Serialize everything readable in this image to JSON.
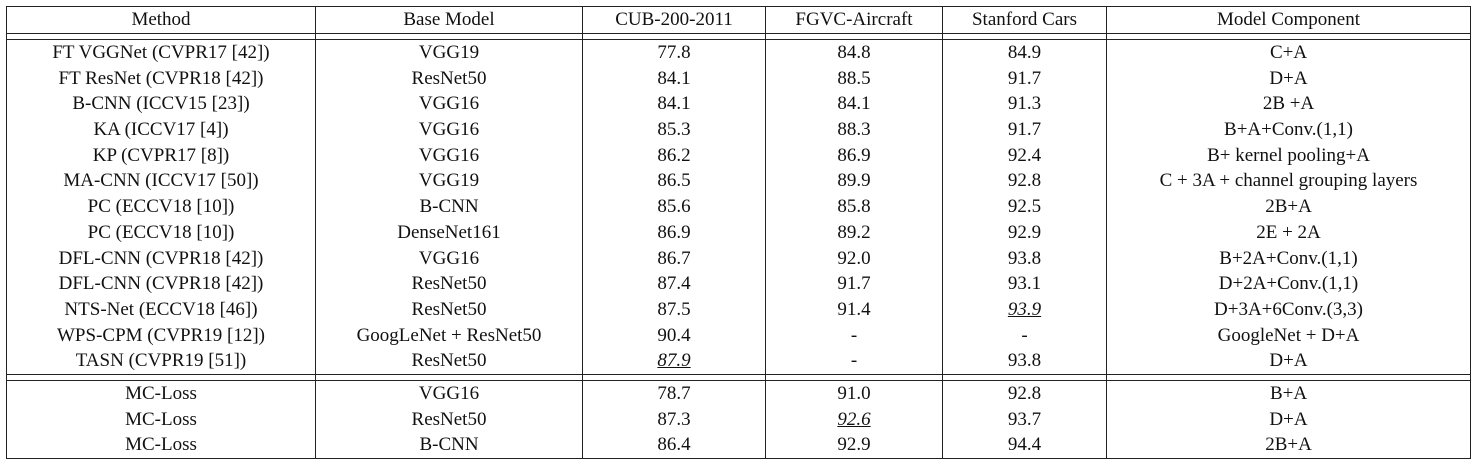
{
  "headers": [
    "Method",
    "Base Model",
    "CUB-200-2011",
    "FGVC-Aircraft",
    "Stanford Cars",
    "Model Component"
  ],
  "rows": [
    [
      "FT VGGNet (CVPR17 [42])",
      "VGG19",
      "77.8",
      "84.8",
      "84.9",
      "C+A"
    ],
    [
      "FT ResNet (CVPR18 [42])",
      "ResNet50",
      "84.1",
      "88.5",
      "91.7",
      "D+A"
    ],
    [
      "B-CNN (ICCV15 [23])",
      "VGG16",
      "84.1",
      "84.1",
      "91.3",
      "2B +A"
    ],
    [
      "KA (ICCV17 [4])",
      "VGG16",
      "85.3",
      "88.3",
      "91.7",
      "B+A+Conv.(1,1)"
    ],
    [
      "KP (CVPR17 [8])",
      "VGG16",
      "86.2",
      "86.9",
      "92.4",
      "B+ kernel pooling+A"
    ],
    [
      "MA-CNN (ICCV17 [50])",
      "VGG19",
      "86.5",
      "89.9",
      "92.8",
      "C + 3A + channel grouping layers"
    ],
    [
      "PC (ECCV18 [10])",
      "B-CNN",
      "85.6",
      "85.8",
      "92.5",
      "2B+A"
    ],
    [
      "PC (ECCV18 [10])",
      "DenseNet161",
      "86.9",
      "89.2",
      "92.9",
      "2E + 2A"
    ],
    [
      "DFL-CNN (CVPR18 [42])",
      "VGG16",
      "86.7",
      "92.0",
      "93.8",
      "B+2A+Conv.(1,1)"
    ],
    [
      "DFL-CNN (CVPR18 [42])",
      "ResNet50",
      "87.4",
      "91.7",
      "93.1",
      "D+2A+Conv.(1,1)"
    ],
    [
      "NTS-Net (ECCV18 [46])",
      "ResNet50",
      "87.5",
      "91.4",
      "93.9",
      "D+3A+6Conv.(3,3)"
    ],
    [
      "WPS-CPM (CVPR19 [12])",
      "GoogLeNet + ResNet50",
      "90.4",
      "-",
      "-",
      "GoogleNet + D+A"
    ],
    [
      "TASN (CVPR19 [51])",
      "ResNet50",
      "87.9",
      "-",
      "93.8",
      "D+A"
    ]
  ],
  "ours_rows": [
    [
      "MC-Loss",
      "VGG16",
      "78.7",
      "91.0",
      "92.8",
      "B+A"
    ],
    [
      "MC-Loss",
      "ResNet50",
      "87.3",
      "92.6",
      "93.7",
      "D+A"
    ],
    [
      "MC-Loss",
      "B-CNN",
      "86.4",
      "92.9",
      "94.4",
      "2B+A"
    ]
  ]
}
